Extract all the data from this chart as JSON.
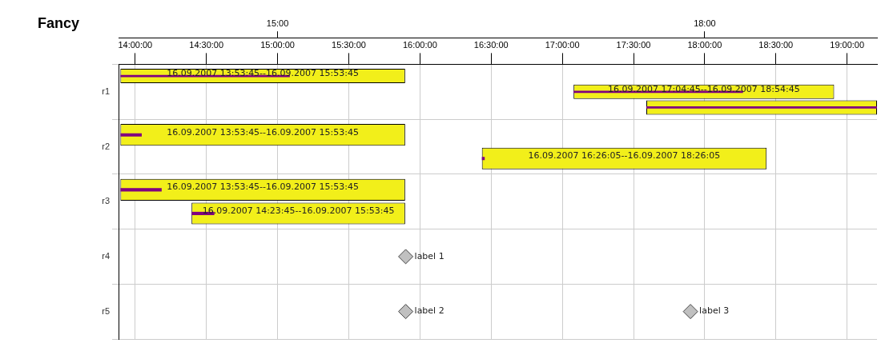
{
  "chart_data": {
    "type": "bar",
    "orientation": "horizontal",
    "title": "Fancy",
    "categories": [
      "r1",
      "r2",
      "r3",
      "r4",
      "r5"
    ],
    "series": [
      {
        "color": "#f2ef1a",
        "base": [
          13.896,
          13.896,
          13.896,
          null,
          null
        ],
        "values": [
          2,
          2,
          2,
          null,
          null
        ]
      },
      {
        "color": "#f2ef1a",
        "base": [
          17.079,
          16.435,
          14.396,
          null,
          null
        ],
        "values": [
          1.83,
          2,
          1.5,
          null,
          null
        ]
      },
      {
        "color": "#f2ef1a",
        "base": [
          17.59,
          null,
          null,
          null,
          null
        ],
        "values": [
          1.62,
          null,
          null,
          null,
          null
        ]
      },
      {
        "color": "#800080",
        "base": [
          13.896,
          13.896,
          13.896,
          null,
          null
        ],
        "values": [
          1.19,
          0.15,
          0.29,
          null,
          null
        ]
      },
      {
        "color": "#800080",
        "base": [
          17.079,
          16.435,
          14.396,
          null,
          null
        ],
        "values": [
          1.19,
          0.02,
          0.16,
          null,
          null
        ]
      },
      {
        "color": "#800080",
        "base": [
          17.59,
          null,
          null,
          null,
          null
        ],
        "values": [
          1.62,
          null,
          null,
          null,
          null
        ]
      },
      {
        "type": "scatter",
        "color": "#c0c0c0",
        "marker": "diamond",
        "values": [
          null,
          null,
          null,
          15.9,
          15.9
        ]
      },
      {
        "type": "scatter",
        "color": "#c0c0c0",
        "marker": "diamond",
        "values": [
          null,
          null,
          null,
          null,
          17.9
        ]
      }
    ],
    "annotations": [
      "16.09.2007 13:53:45--16.09.2007 15:53:45",
      "16.09.2007 17:04:45--16.09.2007 18:54:45",
      "16.09.2007 13:53:45--16.09.2007 15:53:45",
      "16.09.2007 16:26:05--16.09.2007 18:26:05",
      "16.09.2007 13:53:45--16.09.2007 15:53:45",
      "16.09.2007 14:23:45--16.09.2007 15:53:45",
      "label 1",
      "label 2",
      "label 3"
    ],
    "xlim": [
      13.883,
      19.21
    ],
    "xticks": [
      {
        "value": 14,
        "label": "14:00:00"
      },
      {
        "value": 14.5,
        "label": "14:30:00"
      },
      {
        "value": 15,
        "label": "15:00:00"
      },
      {
        "value": 15.5,
        "label": "15:30:00"
      },
      {
        "value": 16,
        "label": "16:00:00"
      },
      {
        "value": 16.5,
        "label": "16:30:00"
      },
      {
        "value": 17,
        "label": "17:00:00"
      },
      {
        "value": 17.5,
        "label": "17:30:00"
      },
      {
        "value": 18,
        "label": "18:00:00"
      },
      {
        "value": 18.5,
        "label": "18:30:00"
      },
      {
        "value": 19,
        "label": "19:00:00"
      }
    ],
    "x2lim": [
      13.883,
      19.21
    ],
    "x2ticks": [
      {
        "value": 15,
        "label": "15:00"
      },
      {
        "value": 18,
        "label": "18:00"
      }
    ],
    "grid": true
  }
}
